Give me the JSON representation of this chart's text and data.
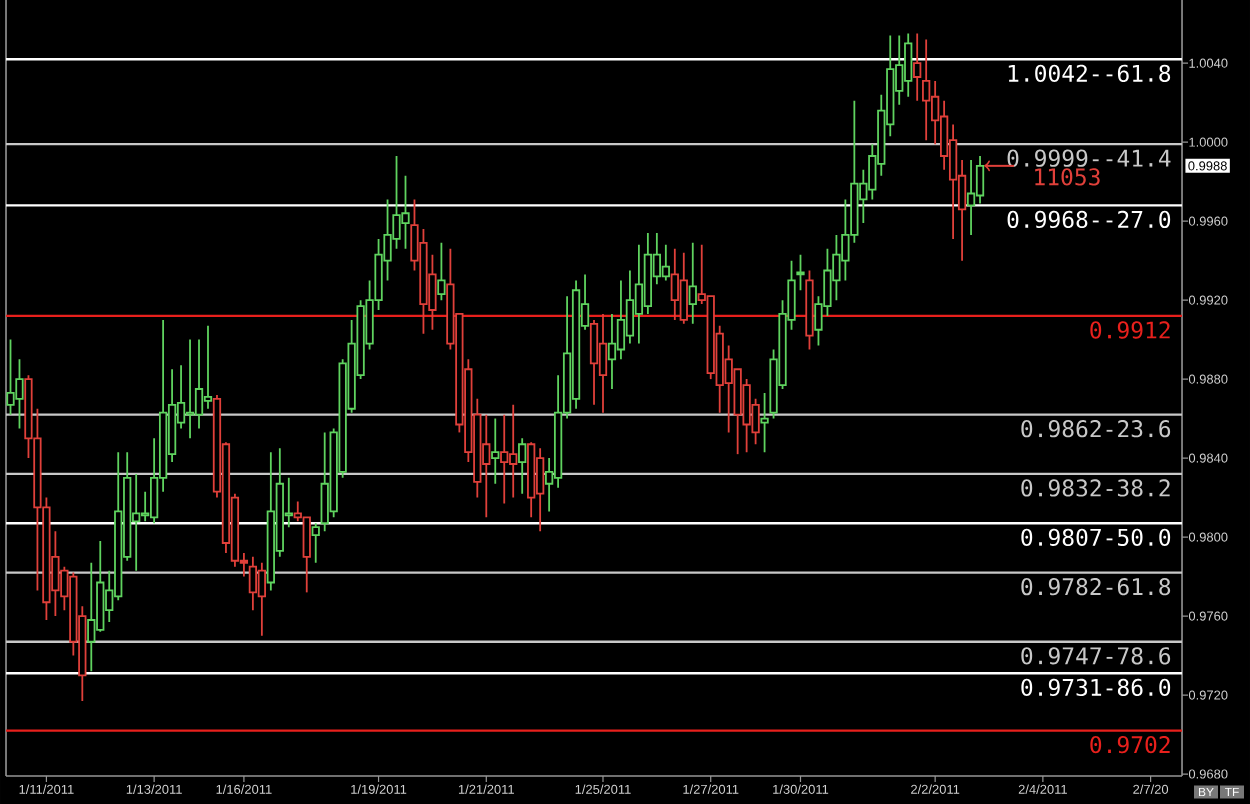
{
  "chart_data": {
    "type": "candlestick",
    "categories": [
      null,
      null,
      null,
      null,
      "1/11/2011",
      null,
      null,
      null,
      null,
      null,
      null,
      null,
      null,
      null,
      null,
      null,
      "1/13/2011",
      null,
      null,
      null,
      null,
      null,
      null,
      null,
      null,
      null,
      "1/16/2011",
      null,
      null,
      null,
      null,
      null,
      null,
      null,
      null,
      null,
      null,
      null,
      null,
      null,
      null,
      "1/19/2011",
      null,
      null,
      null,
      null,
      null,
      null,
      null,
      null,
      null,
      null,
      null,
      "1/21/2011",
      null,
      null,
      null,
      null,
      null,
      null,
      null,
      null,
      null,
      null,
      null,
      null,
      "1/25/2011",
      null,
      null,
      null,
      null,
      null,
      null,
      null,
      null,
      null,
      null,
      null,
      "1/27/2011",
      null,
      null,
      null,
      null,
      null,
      null,
      null,
      null,
      null,
      "1/30/2011",
      null,
      null,
      null,
      null,
      null,
      null,
      null,
      null,
      null,
      null,
      null,
      null,
      null,
      null,
      "2/2/2011",
      null,
      null,
      null,
      null,
      null,
      null,
      null,
      null,
      null,
      null,
      null,
      "2/4/2011",
      null,
      null,
      null,
      null,
      null,
      null,
      null,
      null,
      null,
      null,
      null,
      "2/7/20",
      null,
      null,
      null
    ],
    "ohlc": [
      [
        0.9867,
        0.99,
        0.9862,
        0.9873
      ],
      [
        0.987,
        0.989,
        0.9855,
        0.988
      ],
      [
        0.988,
        0.9882,
        0.984,
        0.985
      ],
      [
        0.985,
        0.9865,
        0.9773,
        0.9815
      ],
      [
        0.9815,
        0.982,
        0.9758,
        0.9767
      ],
      [
        0.979,
        0.9803,
        0.976,
        0.9773
      ],
      [
        0.9783,
        0.9785,
        0.9763,
        0.977
      ],
      [
        0.978,
        0.9782,
        0.974,
        0.9747
      ],
      [
        0.976,
        0.9765,
        0.9717,
        0.973
      ],
      [
        0.9747,
        0.9787,
        0.9732,
        0.9758
      ],
      [
        0.9753,
        0.9798,
        0.9752,
        0.9777
      ],
      [
        0.9763,
        0.9783,
        0.9757,
        0.9773
      ],
      [
        0.977,
        0.9843,
        0.9768,
        0.9813
      ],
      [
        0.979,
        0.9843,
        0.9788,
        0.983
      ],
      [
        0.9808,
        0.9832,
        0.9783,
        0.9812
      ],
      [
        0.9811,
        0.9823,
        0.9808,
        0.9812
      ],
      [
        0.981,
        0.985,
        0.9807,
        0.983
      ],
      [
        0.983,
        0.991,
        0.9823,
        0.9863
      ],
      [
        0.9842,
        0.9885,
        0.9838,
        0.9867
      ],
      [
        0.9858,
        0.9887,
        0.9855,
        0.9868
      ],
      [
        0.9862,
        0.99,
        0.985,
        0.9863
      ],
      [
        0.9862,
        0.99,
        0.9855,
        0.9875
      ],
      [
        0.9869,
        0.9907,
        0.9865,
        0.9871
      ],
      [
        0.987,
        0.9872,
        0.982,
        0.9823
      ],
      [
        0.9847,
        0.9848,
        0.9792,
        0.9797
      ],
      [
        0.982,
        0.9822,
        0.9785,
        0.9788
      ],
      [
        0.9788,
        0.9792,
        0.978,
        0.9787
      ],
      [
        0.9785,
        0.979,
        0.9763,
        0.9772
      ],
      [
        0.9783,
        0.9787,
        0.975,
        0.977
      ],
      [
        0.9777,
        0.9843,
        0.9773,
        0.9813
      ],
      [
        0.9793,
        0.9845,
        0.979,
        0.9827
      ],
      [
        0.9811,
        0.983,
        0.9805,
        0.9812
      ],
      [
        0.9812,
        0.9818,
        0.9808,
        0.981
      ],
      [
        0.981,
        0.981,
        0.9772,
        0.979
      ],
      [
        0.9801,
        0.9807,
        0.9787,
        0.9805
      ],
      [
        0.9807,
        0.9853,
        0.9803,
        0.9827
      ],
      [
        0.9813,
        0.9855,
        0.981,
        0.9853
      ],
      [
        0.9833,
        0.989,
        0.983,
        0.9888
      ],
      [
        0.9865,
        0.991,
        0.9863,
        0.9898
      ],
      [
        0.9882,
        0.992,
        0.988,
        0.9917
      ],
      [
        0.9898,
        0.993,
        0.9895,
        0.992
      ],
      [
        0.992,
        0.9951,
        0.9915,
        0.9943
      ],
      [
        0.994,
        0.9971,
        0.993,
        0.9953
      ],
      [
        0.9951,
        0.9993,
        0.9946,
        0.9963
      ],
      [
        0.9959,
        0.9983,
        0.9946,
        0.9964
      ],
      [
        0.9958,
        0.9971,
        0.9935,
        0.994
      ],
      [
        0.9949,
        0.9956,
        0.9903,
        0.9918
      ],
      [
        0.9933,
        0.9943,
        0.9905,
        0.9915
      ],
      [
        0.9923,
        0.9949,
        0.992,
        0.993
      ],
      [
        0.9928,
        0.9946,
        0.9895,
        0.9898
      ],
      [
        0.9913,
        0.9913,
        0.9853,
        0.9857
      ],
      [
        0.9885,
        0.989,
        0.9838,
        0.9843
      ],
      [
        0.9862,
        0.987,
        0.982,
        0.9828
      ],
      [
        0.9847,
        0.9862,
        0.981,
        0.9837
      ],
      [
        0.984,
        0.986,
        0.9827,
        0.9843
      ],
      [
        0.9843,
        0.9862,
        0.9817,
        0.9838
      ],
      [
        0.9842,
        0.9867,
        0.982,
        0.9837
      ],
      [
        0.9838,
        0.985,
        0.9822,
        0.9847
      ],
      [
        0.9847,
        0.9848,
        0.981,
        0.982
      ],
      [
        0.984,
        0.9845,
        0.9803,
        0.9822
      ],
      [
        0.9827,
        0.984,
        0.9813,
        0.9833
      ],
      [
        0.983,
        0.9882,
        0.9825,
        0.9863
      ],
      [
        0.9863,
        0.9922,
        0.986,
        0.9893
      ],
      [
        0.987,
        0.993,
        0.9865,
        0.9925
      ],
      [
        0.9907,
        0.9933,
        0.9905,
        0.9918
      ],
      [
        0.9908,
        0.991,
        0.9867,
        0.9888
      ],
      [
        0.9898,
        0.9913,
        0.9863,
        0.9882
      ],
      [
        0.989,
        0.9913,
        0.9875,
        0.9898
      ],
      [
        0.9895,
        0.993,
        0.989,
        0.991
      ],
      [
        0.9902,
        0.9935,
        0.9898,
        0.992
      ],
      [
        0.9913,
        0.9948,
        0.9898,
        0.9928
      ],
      [
        0.9917,
        0.9954,
        0.9913,
        0.9943
      ],
      [
        0.9932,
        0.9954,
        0.9928,
        0.9943
      ],
      [
        0.9932,
        0.9948,
        0.993,
        0.9937
      ],
      [
        0.9933,
        0.9946,
        0.991,
        0.992
      ],
      [
        0.993,
        0.9944,
        0.9908,
        0.991
      ],
      [
        0.9918,
        0.9949,
        0.9908,
        0.9927
      ],
      [
        0.9923,
        0.9948,
        0.9918,
        0.992
      ],
      [
        0.9922,
        0.9922,
        0.988,
        0.9883
      ],
      [
        0.9903,
        0.9907,
        0.9863,
        0.9877
      ],
      [
        0.989,
        0.9897,
        0.9853,
        0.9878
      ],
      [
        0.9885,
        0.9885,
        0.9842,
        0.9862
      ],
      [
        0.9877,
        0.988,
        0.9843,
        0.9857
      ],
      [
        0.9867,
        0.987,
        0.9847,
        0.9853
      ],
      [
        0.9858,
        0.9873,
        0.9843,
        0.986
      ],
      [
        0.9863,
        0.9895,
        0.986,
        0.989
      ],
      [
        0.9877,
        0.992,
        0.9875,
        0.9913
      ],
      [
        0.991,
        0.994,
        0.9905,
        0.993
      ],
      [
        0.9933,
        0.9943,
        0.9925,
        0.9934
      ],
      [
        0.993,
        0.9935,
        0.9895,
        0.9902
      ],
      [
        0.9905,
        0.9922,
        0.9897,
        0.9918
      ],
      [
        0.9917,
        0.9946,
        0.9912,
        0.9935
      ],
      [
        0.993,
        0.9953,
        0.992,
        0.9943
      ],
      [
        0.994,
        0.9971,
        0.993,
        0.9953
      ],
      [
        0.9953,
        1.0021,
        0.9949,
        0.9979
      ],
      [
        0.9971,
        0.9986,
        0.9959,
        0.9979
      ],
      [
        0.9976,
        0.9999,
        0.9971,
        0.9993
      ],
      [
        0.9989,
        1.0024,
        0.9983,
        1.0016
      ],
      [
        1.0009,
        1.0054,
        1.0003,
        1.0037
      ],
      [
        1.0026,
        1.0054,
        1.0019,
        1.0039
      ],
      [
        1.0031,
        1.0055,
        1.0023,
        1.005
      ],
      [
        1.004,
        1.0055,
        1.0021,
        1.0033
      ],
      [
        1.0031,
        1.0052,
        1.0001,
        1.0021
      ],
      [
        1.0023,
        1.0031,
        0.9999,
        1.0011
      ],
      [
        1.0013,
        1.0021,
        0.9986,
        0.9993
      ],
      [
        1.0001,
        1.0009,
        0.9951,
        0.9981
      ],
      [
        0.9983,
        0.9991,
        0.994,
        0.9966
      ],
      [
        0.9968,
        0.9991,
        0.9953,
        0.9974
      ],
      [
        0.9973,
        0.9993,
        0.9969,
        0.9988
      ],
      null,
      null,
      null,
      null,
      null,
      null,
      null,
      null,
      null,
      null,
      null,
      null,
      null,
      null,
      null,
      null,
      null,
      null,
      null,
      null,
      null,
      null
    ],
    "colors": [
      "#5fd35f",
      "#5fd35f",
      "#e0403a",
      "#e0403a",
      "#e0403a",
      "#e0403a",
      "#e0403a",
      "#e0403a",
      "#e0403a",
      "#5fd35f",
      "#5fd35f",
      "#5fd35f",
      "#5fd35f",
      "#5fd35f",
      "#5fd35f",
      "#5fd35f",
      "#5fd35f",
      "#5fd35f",
      "#5fd35f",
      "#5fd35f",
      "#5fd35f",
      "#5fd35f",
      "#5fd35f",
      "#e0403a",
      "#e0403a",
      "#e0403a",
      "#e0403a",
      "#e0403a",
      "#e0403a",
      "#5fd35f",
      "#5fd35f",
      "#5fd35f",
      "#e0403a",
      "#e0403a",
      "#5fd35f",
      "#5fd35f",
      "#5fd35f",
      "#5fd35f",
      "#5fd35f",
      "#5fd35f",
      "#5fd35f",
      "#5fd35f",
      "#5fd35f",
      "#5fd35f",
      "#5fd35f",
      "#e0403a",
      "#e0403a",
      "#e0403a",
      "#5fd35f",
      "#e0403a",
      "#e0403a",
      "#e0403a",
      "#e0403a",
      "#e0403a",
      "#5fd35f",
      "#e0403a",
      "#e0403a",
      "#5fd35f",
      "#e0403a",
      "#e0403a",
      "#5fd35f",
      "#5fd35f",
      "#5fd35f",
      "#5fd35f",
      "#5fd35f",
      "#e0403a",
      "#e0403a",
      "#5fd35f",
      "#5fd35f",
      "#5fd35f",
      "#5fd35f",
      "#5fd35f",
      "#5fd35f",
      "#5fd35f",
      "#e0403a",
      "#e0403a",
      "#5fd35f",
      "#e0403a",
      "#e0403a",
      "#e0403a",
      "#e0403a",
      "#e0403a",
      "#e0403a",
      "#e0403a",
      "#5fd35f",
      "#5fd35f",
      "#5fd35f",
      "#5fd35f",
      "#5fd35f",
      "#e0403a",
      "#5fd35f",
      "#5fd35f",
      "#5fd35f",
      "#5fd35f",
      "#5fd35f",
      "#5fd35f",
      "#5fd35f",
      "#5fd35f",
      "#5fd35f",
      "#5fd35f",
      "#5fd35f",
      "#e0403a",
      "#e0403a",
      "#e0403a",
      "#e0403a",
      "#e0403a",
      "#e0403a",
      "#5fd35f",
      "#5fd35f",
      null,
      null,
      null,
      null,
      null,
      null,
      null,
      null,
      null,
      null,
      null,
      null,
      null,
      null,
      null,
      null,
      null,
      null,
      null,
      null,
      null,
      null
    ],
    "ylim": [
      0.9679,
      1.0072
    ],
    "yticks": [
      {
        "value": 0.968,
        "label": "0.9680"
      },
      {
        "value": 0.972,
        "label": "0.9720"
      },
      {
        "value": 0.976,
        "label": "0.9760"
      },
      {
        "value": 0.98,
        "label": "0.9800"
      },
      {
        "value": 0.984,
        "label": "0.9840"
      },
      {
        "value": 0.988,
        "label": "0.9880"
      },
      {
        "value": 0.992,
        "label": "0.9920"
      },
      {
        "value": 0.996,
        "label": "0.9960"
      },
      {
        "value": 1.0,
        "label": "1.0000"
      },
      {
        "value": 1.004,
        "label": "1.0040"
      }
    ],
    "ref_lines": [
      {
        "axis": "y",
        "value": 1.0042,
        "label": "1.0042--61.8",
        "color": "#ffffff"
      },
      {
        "axis": "y",
        "value": 0.9999,
        "label": "0.9999--41.4",
        "color": "#c8c8c8"
      },
      {
        "axis": "y",
        "value": 0.9968,
        "label": "0.9968--27.0",
        "color": "#ffffff"
      },
      {
        "axis": "y",
        "value": 0.9912,
        "label": "0.9912",
        "color": "#e8201c"
      },
      {
        "axis": "y",
        "value": 0.9862,
        "label": "0.9862-23.6",
        "color": "#c8c8c8"
      },
      {
        "axis": "y",
        "value": 0.9832,
        "label": "0.9832-38.2",
        "color": "#c8c8c8"
      },
      {
        "axis": "y",
        "value": 0.9807,
        "label": "0.9807-50.0",
        "color": "#ffffff"
      },
      {
        "axis": "y",
        "value": 0.9782,
        "label": "0.9782-61.8",
        "color": "#c8c8c8"
      },
      {
        "axis": "y",
        "value": 0.9747,
        "label": "0.9747-78.6",
        "color": "#c8c8c8"
      },
      {
        "axis": "y",
        "value": 0.9731,
        "label": "0.9731-86.0",
        "color": "#ffffff"
      },
      {
        "axis": "y",
        "value": 0.9702,
        "label": "0.9702",
        "color": "#e8201c"
      }
    ],
    "annotations": [
      {
        "text": "0.9988",
        "y": 0.9988
      },
      "11053",
      "BY",
      "TF"
    ]
  }
}
